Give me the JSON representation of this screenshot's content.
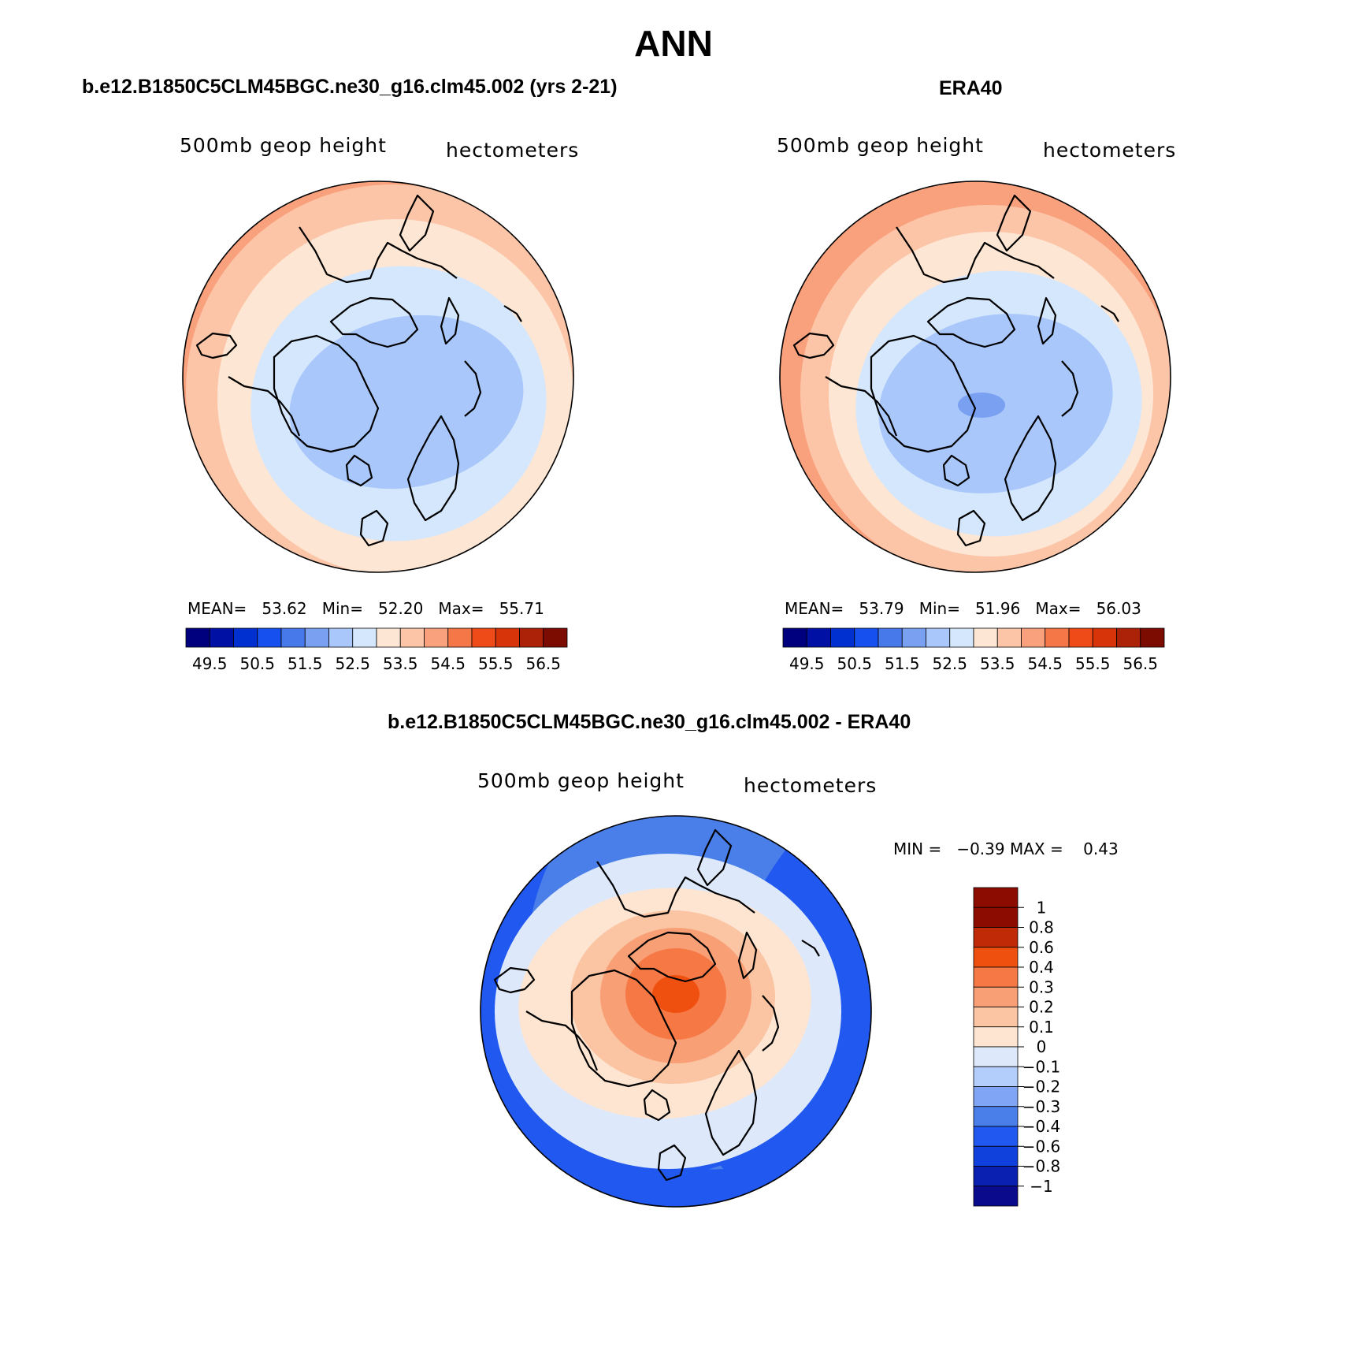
{
  "title": "ANN",
  "colors": {
    "abs_scale": [
      "#00007f",
      "#0010a4",
      "#0030d0",
      "#1650ee",
      "#4879ea",
      "#7aa0f2",
      "#a9c7fb",
      "#d5e7fc",
      "#fde6d4",
      "#fcc5a8",
      "#f9a07d",
      "#f57646",
      "#ef4b18",
      "#d83409",
      "#ac2208",
      "#7c0c02"
    ],
    "diff_scale": [
      "#0a0a8c",
      "#0a20b0",
      "#1141dc",
      "#2058f0",
      "#4a7ee8",
      "#80a5f4",
      "#b4cefc",
      "#dde9fb",
      "#fde5d2",
      "#fbc4a2",
      "#f99f76",
      "#f57845",
      "#f0500f",
      "#c12a06",
      "#8c0c02"
    ],
    "coastline": "#000000"
  },
  "panels": [
    {
      "title": "b.e12.B1850C5CLM45BGC.ne30_g16.clm45.002 (yrs 2-21)",
      "variable": "500mb geop height",
      "units": "hectometers",
      "stats": {
        "mean_label": "MEAN=",
        "mean": "53.62",
        "min_label": "Min=",
        "min": "52.20",
        "max_label": "Max=",
        "max": "55.71"
      },
      "colorbar_ticks": [
        "49.5",
        "50.5",
        "51.5",
        "52.5",
        "53.5",
        "54.5",
        "55.5",
        "56.5"
      ]
    },
    {
      "title": "ERA40",
      "variable": "500mb geop height",
      "units": "hectometers",
      "stats": {
        "mean_label": "MEAN=",
        "mean": "53.79",
        "min_label": "Min=",
        "min": "51.96",
        "max_label": "Max=",
        "max": "56.03"
      },
      "colorbar_ticks": [
        "49.5",
        "50.5",
        "51.5",
        "52.5",
        "53.5",
        "54.5",
        "55.5",
        "56.5"
      ]
    },
    {
      "title": "b.e12.B1850C5CLM45BGC.ne30_g16.clm45.002 - ERA40",
      "variable": "500mb geop height",
      "units": "hectometers",
      "stats": {
        "min_label": "MIN =",
        "min": "−0.39",
        "max_label": "MAX =",
        "max": "0.43"
      },
      "colorbar_ticks": [
        "1",
        "0.8",
        "0.6",
        "0.4",
        "0.3",
        "0.2",
        "0.1",
        "0",
        "−0.1",
        "−0.2",
        "−0.3",
        "−0.4",
        "−0.6",
        "−0.8",
        "−1"
      ]
    }
  ]
}
